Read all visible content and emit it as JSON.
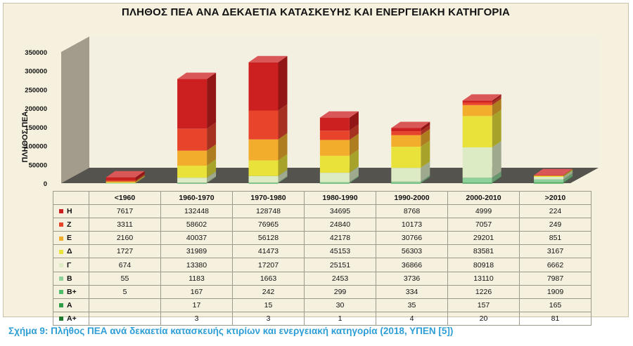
{
  "figure_caption": "Σχήμα 9: Πλήθος ΠΕΑ ανά δεκαετία κατασκευής κτιρίων και ενεργειακή κατηγορία (2018, ΥΠΕΝ [5])",
  "chart_data": {
    "type": "bar",
    "stacked": true,
    "three_d": true,
    "title": "ΠΛΗΘΟΣ ΠΕΑ ΑΝΑ ΔΕΚΑΕΤΙΑ ΚΑΤΑΣΚΕΥΗΣ ΚΑΙ ΕΝΕΡΓΕΙΑΚΗ ΚΑΤΗΓΟΡΙΑ",
    "xlabel": "",
    "ylabel": "ΠΛΗΘΟΣ ΠΕΑ",
    "ylim": [
      0,
      350000
    ],
    "yticks": [
      0,
      50000,
      100000,
      150000,
      200000,
      250000,
      300000,
      350000
    ],
    "ytick_labels": [
      "0",
      "50000",
      "100000",
      "150000",
      "200000",
      "250000",
      "300000",
      "350000"
    ],
    "grid": false,
    "legend": "data-table",
    "categories": [
      "<1960",
      "1960-1970",
      "1970-1980",
      "1980-1990",
      "1990-2000",
      "2000-2010",
      ">2010"
    ],
    "series": [
      {
        "name": "A+",
        "color": "#1f7a2e",
        "values": [
          null,
          3,
          3,
          1,
          4,
          20,
          81
        ],
        "labels": [
          "",
          "3",
          "3",
          "1",
          "4",
          "20",
          "81"
        ]
      },
      {
        "name": "A",
        "color": "#2f9e48",
        "values": [
          null,
          17,
          15,
          30,
          35,
          157,
          165
        ],
        "labels": [
          "",
          "17",
          "15",
          "30",
          "35",
          "157",
          "165"
        ]
      },
      {
        "name": "B+",
        "color": "#4fbd6a",
        "values": [
          5,
          167,
          242,
          299,
          334,
          1226,
          1909
        ],
        "labels": [
          "5",
          "167",
          "242",
          "299",
          "334",
          "1226",
          "1909"
        ]
      },
      {
        "name": "B",
        "color": "#8fd19a",
        "values": [
          55,
          1183,
          1663,
          2453,
          3736,
          13110,
          7987
        ],
        "labels": [
          "55",
          "1183",
          "1663",
          "2453",
          "3736",
          "13110",
          "7987"
        ]
      },
      {
        "name": "Γ",
        "color": "#dcebc4",
        "values": [
          674,
          13380,
          17207,
          25151,
          36866,
          80918,
          6662
        ],
        "labels": [
          "674",
          "13380",
          "17207",
          "25151",
          "36866",
          "80918",
          "6662"
        ]
      },
      {
        "name": "Δ",
        "color": "#e8e23a",
        "values": [
          1727,
          31989,
          41473,
          45153,
          56303,
          83581,
          3167
        ],
        "labels": [
          "1727",
          "31989",
          "41473",
          "45153",
          "56303",
          "83581",
          "3167"
        ]
      },
      {
        "name": "E",
        "color": "#f2ad2c",
        "values": [
          2160,
          40037,
          56128,
          42178,
          30766,
          29201,
          851
        ],
        "labels": [
          "2160",
          "40037",
          "56128",
          "42178",
          "30766",
          "29201",
          "851"
        ]
      },
      {
        "name": "Z",
        "color": "#e8442c",
        "values": [
          3311,
          58602,
          76965,
          24840,
          10173,
          7057,
          249
        ],
        "labels": [
          "3311",
          "58602",
          "76965",
          "24840",
          "10173",
          "7057",
          "249"
        ]
      },
      {
        "name": "H",
        "color": "#cc1f1f",
        "values": [
          7617,
          132448,
          128748,
          34695,
          8768,
          4999,
          224
        ],
        "labels": [
          "7617",
          "132448",
          "128748",
          "34695",
          "8768",
          "4999",
          "224"
        ]
      }
    ],
    "table_row_order": [
      "H",
      "Z",
      "E",
      "Δ",
      "Γ",
      "B",
      "B+",
      "A",
      "A+"
    ]
  }
}
